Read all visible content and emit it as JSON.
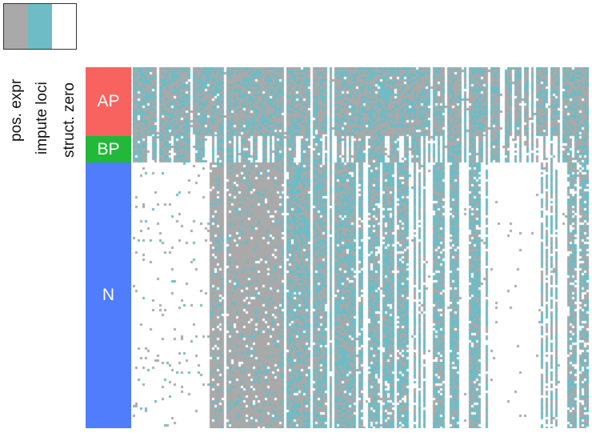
{
  "chart_data": {
    "type": "heatmap",
    "legend": [
      {
        "label": "pos. expr",
        "color": "#a9a9a9"
      },
      {
        "label": "impute loci",
        "color": "#6dbcc6"
      },
      {
        "label": "struct. zero",
        "color": "#ffffff"
      }
    ],
    "groups": [
      {
        "label": "AP",
        "color": "#f8635f",
        "rows": 86
      },
      {
        "label": "BP",
        "color": "#22b83a",
        "rows": 33
      },
      {
        "label": "N",
        "color": "#4f7dfb",
        "rows": 332
      }
    ]
  }
}
